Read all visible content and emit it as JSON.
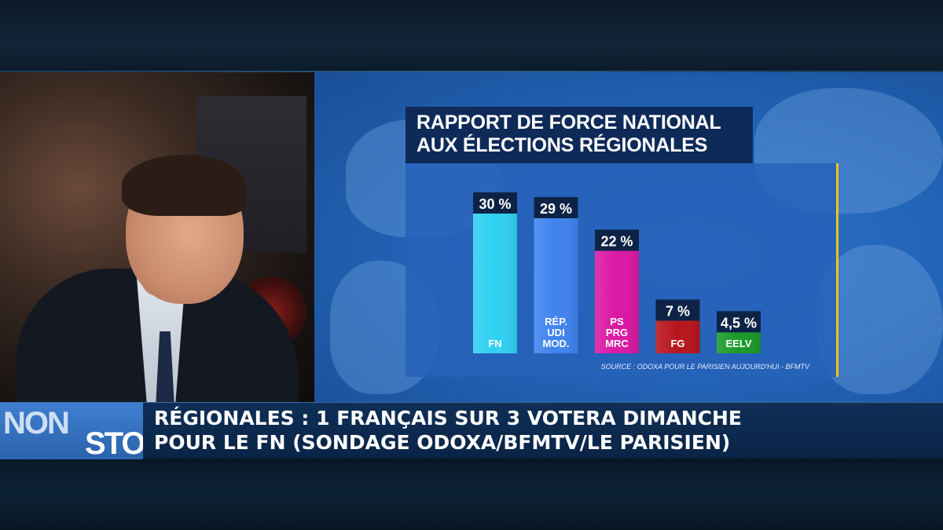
{
  "ticker": {
    "logo_part1": "NON",
    "logo_part2": "STOP",
    "headline_line1": "RÉGIONALES : 1 FRANÇAIS SUR 3 VOTERA DIMANCHE",
    "headline_line2": "POUR LE FN (SONDAGE ODOXA/BFMTV/LE PARISIEN)"
  },
  "chart_data": {
    "type": "bar",
    "title_line1": "RAPPORT DE FORCE NATIONAL",
    "title_line2": "AUX ÉLECTIONS RÉGIONALES",
    "categories": [
      "FN",
      "RÉP. UDI MOD.",
      "PS PRG MRC",
      "FG",
      "EELV"
    ],
    "bar_labels": [
      [
        "FN"
      ],
      [
        "RÉP.",
        "UDI",
        "MOD."
      ],
      [
        "PS",
        "PRG",
        "MRC"
      ],
      [
        "FG"
      ],
      [
        "EELV"
      ]
    ],
    "values": [
      30,
      29,
      22,
      7,
      4.5
    ],
    "value_labels": [
      "30 %",
      "29 %",
      "22 %",
      "7 %",
      "4,5 %"
    ],
    "colors": [
      "#2fd0f2",
      "#3f83ee",
      "#d918a3",
      "#b8141d",
      "#1a9a27"
    ],
    "source": "SOURCE : ODOXA POUR LE PARISIEN AUJOURD'HUI - BFMTV",
    "ylim": [
      0,
      30
    ]
  }
}
